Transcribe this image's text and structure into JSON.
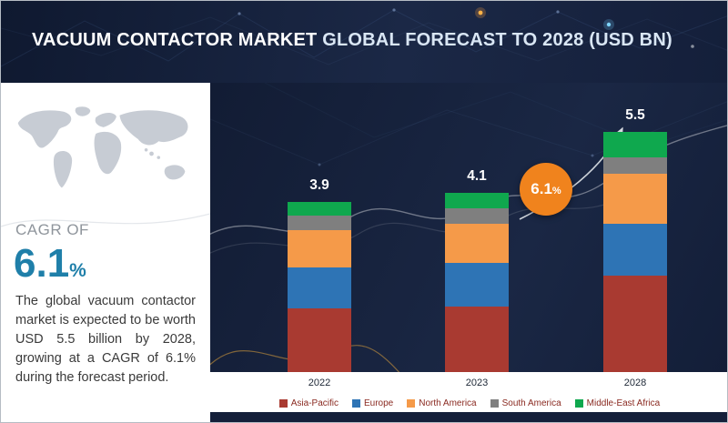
{
  "header": {
    "title_primary": "VACUUM CONTACTOR MARKET",
    "title_secondary": " GLOBAL FORECAST TO 2028 (USD BN)"
  },
  "sidebar": {
    "cagr_label": "CAGR OF",
    "cagr_value": "6.1",
    "cagr_suffix": "%",
    "description": "The global vacuum contactor market is expected to be worth USD 5.5 billion by 2028, growing at a CAGR of 6.1% during the forecast period."
  },
  "badge": {
    "value": "6.1",
    "suffix": "%"
  },
  "colors": {
    "banner_navy": "#141f3a",
    "cagr_teal": "#1f7fa9",
    "badge_orange": "#f0831d"
  },
  "chart_data": {
    "type": "bar",
    "stacked": true,
    "title": "Vacuum Contactor Market Global Forecast to 2028 (USD BN)",
    "unit": "USD BN",
    "categories": [
      "2022",
      "2023",
      "2028"
    ],
    "totals": [
      "3.9",
      "4.1",
      "5.5"
    ],
    "series": [
      {
        "name": "Asia-Pacific",
        "color": "#a93a31",
        "values": [
          1.45,
          1.5,
          2.2
        ]
      },
      {
        "name": "Europe",
        "color": "#2e74b5",
        "values": [
          0.95,
          1.0,
          1.2
        ]
      },
      {
        "name": "North America",
        "color": "#f59a49",
        "values": [
          0.85,
          0.9,
          1.15
        ]
      },
      {
        "name": "South America",
        "color": "#7f7f7f",
        "values": [
          0.33,
          0.35,
          0.37
        ]
      },
      {
        "name": "Middle-East Africa",
        "color": "#0fa84e",
        "values": [
          0.32,
          0.35,
          0.58
        ]
      }
    ],
    "ylim": [
      0,
      6
    ],
    "grid": false,
    "legend_position": "bottom",
    "annotation": {
      "text": "6.1%",
      "type": "growth-badge"
    }
  }
}
